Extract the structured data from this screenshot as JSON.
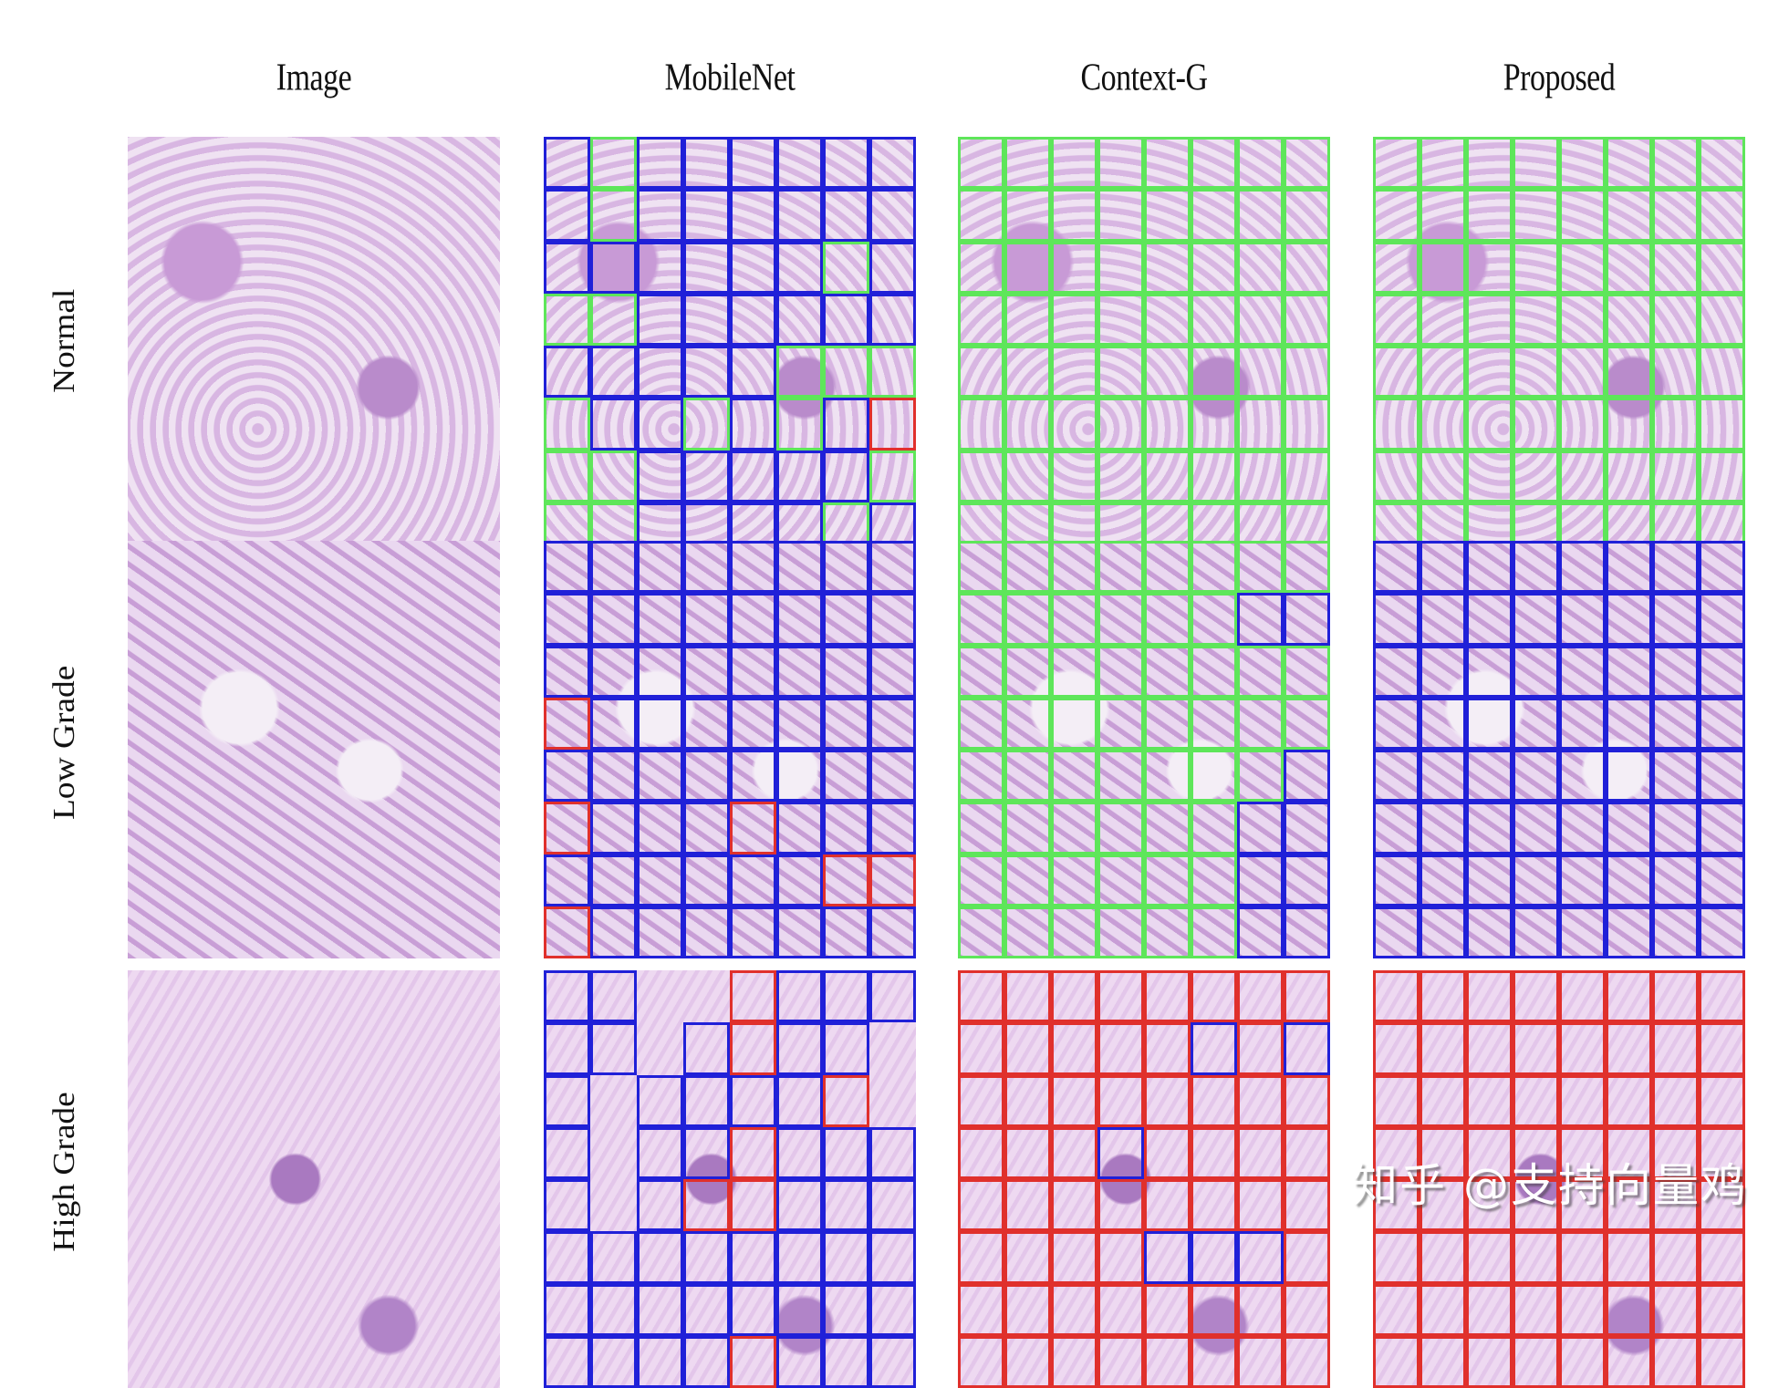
{
  "figure": {
    "columns": [
      {
        "label": "Image"
      },
      {
        "label": "MobileNet"
      },
      {
        "label": "Context-G"
      },
      {
        "label": "Proposed"
      }
    ],
    "rows": [
      {
        "label": "Normal",
        "tint": "normal"
      },
      {
        "label": "Low Grade",
        "tint": "low"
      },
      {
        "label": "High Grade",
        "tint": "high"
      }
    ],
    "legend_colors": {
      "normal": "#5ee65a",
      "low_grade": "#2020d8",
      "high_grade": "#e0302c"
    },
    "grid_size": 8,
    "predictions": {
      "normal": {
        "mobilenet": [
          "bgbbbbbb",
          "bgbbbbbb",
          "bbbbbbgb",
          "ggbbbbbb",
          "bbbbbggg",
          "gbbgbgbr",
          "ggbbbbbg",
          "ggbbbbgb"
        ],
        "context_g": [
          "gggggggg",
          "gggggggg",
          "gggggggg",
          "gggggggg",
          "gggggggg",
          "gggggggg",
          "gggggggg",
          "gggggggg"
        ],
        "proposed": [
          "gggggggg",
          "gggggggg",
          "gggggggg",
          "gggggggg",
          "gggggggg",
          "gggggggg",
          "gggggggg",
          "gggggggg"
        ]
      },
      "low": {
        "mobilenet": [
          "bbbbbbbb",
          "bbbbbbbb",
          "bbbbbbbb",
          "rbbbbbbb",
          "bbbbbbbb",
          "rbbbrbbb",
          "bbbbbbrr",
          "rbbbbbbb"
        ],
        "context_g": [
          "gggggggg",
          "ggggggbb",
          "gggggggg",
          "gggggggg",
          "gggggggb",
          "ggggggbb",
          "ggggggbb",
          "ggggggbb"
        ],
        "proposed": [
          "bbbbbbbb",
          "bbbbbbbb",
          "bbbbbbbb",
          "bbbbbbbb",
          "bbbbbbbb",
          "bbbbbbbb",
          "bbbbbbbb",
          "bbbbbbbb"
        ]
      },
      "high": {
        "mobilenet": [
          "bb..rbbb",
          "bb.brbb.",
          "b.bbbbr.",
          "b.bbrbbb",
          "b.brrbbb",
          "bbbbbbbb",
          "bbbbbbbb",
          "bbbbrbbb"
        ],
        "context_g": [
          "rrrrrrrr",
          "rrrrrbrb",
          "rrrrrrrr",
          "rrrbrrrr",
          "rrrrrrrr",
          "rrrrbbbr",
          "rrrrrrrr",
          "rrrrrrrr"
        ],
        "proposed": [
          "rrrrrrrr",
          "rrrrrrrr",
          "rrrrrrrr",
          "rrrrrrrr",
          "rrrrrrrr",
          "rrrrrrrr",
          "rrrrrrrr",
          "rrrrrrrr"
        ]
      }
    },
    "watermark": "知乎 @支持向量鸡"
  }
}
